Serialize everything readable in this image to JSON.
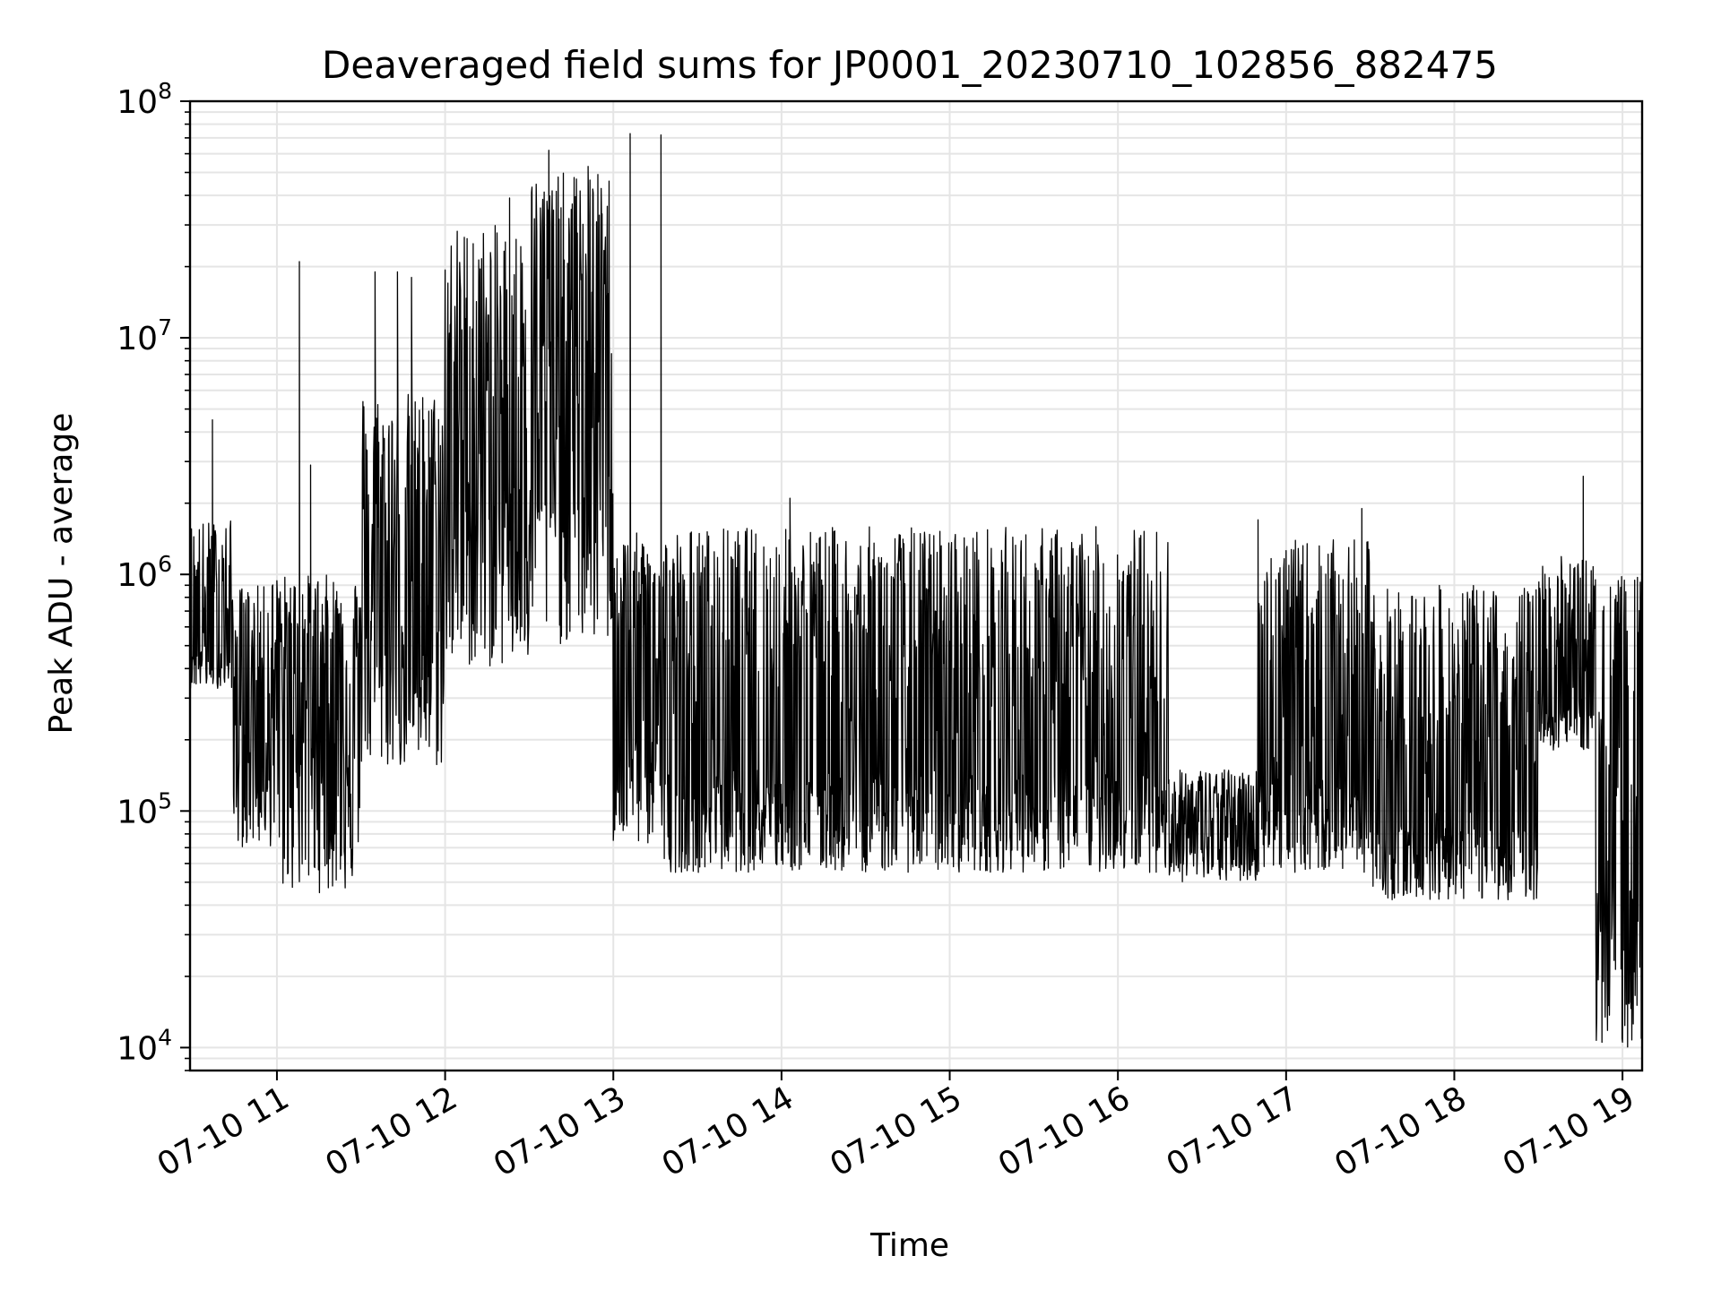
{
  "chart_data": {
    "type": "line",
    "title": "Deaveraged field sums for JP0001_20230710_102856_882475",
    "xlabel": "Time",
    "ylabel": "Peak ADU - average",
    "yscale": "log",
    "ylim": [
      8000,
      100000000
    ],
    "xlim": [
      "2023-07-10 10:29",
      "2023-07-10 19:07"
    ],
    "grid": true,
    "line_color": "#000000",
    "grid_color": "#e5e5e5",
    "x_ticks": [
      {
        "value": "2023-07-10 11:00",
        "label": "07-10 11"
      },
      {
        "value": "2023-07-10 12:00",
        "label": "07-10 12"
      },
      {
        "value": "2023-07-10 13:00",
        "label": "07-10 13"
      },
      {
        "value": "2023-07-10 14:00",
        "label": "07-10 14"
      },
      {
        "value": "2023-07-10 15:00",
        "label": "07-10 15"
      },
      {
        "value": "2023-07-10 16:00",
        "label": "07-10 16"
      },
      {
        "value": "2023-07-10 17:00",
        "label": "07-10 17"
      },
      {
        "value": "2023-07-10 18:00",
        "label": "07-10 18"
      },
      {
        "value": "2023-07-10 19:00",
        "label": "07-10 19"
      }
    ],
    "y_ticks": [
      {
        "value": 10000,
        "base": "10",
        "exp": "4"
      },
      {
        "value": 100000,
        "base": "10",
        "exp": "5"
      },
      {
        "value": 1000000,
        "base": "10",
        "exp": "6"
      },
      {
        "value": 10000000,
        "base": "10",
        "exp": "7"
      },
      {
        "value": 100000000,
        "base": "10",
        "exp": "8"
      }
    ],
    "series": [
      {
        "style": "dense-spiky",
        "segments": [
          {
            "start": "2023-07-10 10:29",
            "end": "2023-07-10 10:44",
            "base": 500000,
            "low": 330000,
            "high": 1700000
          },
          {
            "start": "2023-07-10 10:44",
            "end": "2023-07-10 10:58",
            "base": 250000,
            "low": 70000,
            "high": 900000
          },
          {
            "start": "2023-07-10 10:58",
            "end": "2023-07-10 11:30",
            "base": 300000,
            "low": 45000,
            "high": 1000000
          },
          {
            "start": "2023-07-10 11:30",
            "end": "2023-07-10 12:00",
            "base": 700000,
            "low": 150000,
            "high": 6000000
          },
          {
            "start": "2023-07-10 12:00",
            "end": "2023-07-10 12:30",
            "base": 2500000,
            "low": 400000,
            "high": 30000000
          },
          {
            "start": "2023-07-10 12:30",
            "end": "2023-07-10 13:00",
            "base": 5000000,
            "low": 500000,
            "high": 50000000
          },
          {
            "start": "2023-07-10 13:00",
            "end": "2023-07-10 13:17",
            "base": 300000,
            "low": 70000,
            "high": 1500000
          },
          {
            "start": "2023-07-10 13:17",
            "end": "2023-07-10 16:18",
            "base": 150000,
            "low": 55000,
            "high": 1600000
          },
          {
            "start": "2023-07-10 16:18",
            "end": "2023-07-10 16:50",
            "base": 80000,
            "low": 50000,
            "high": 150000
          },
          {
            "start": "2023-07-10 16:50",
            "end": "2023-07-10 17:30",
            "base": 150000,
            "low": 55000,
            "high": 1400000
          },
          {
            "start": "2023-07-10 17:30",
            "end": "2023-07-10 18:30",
            "base": 90000,
            "low": 42000,
            "high": 900000
          },
          {
            "start": "2023-07-10 18:30",
            "end": "2023-07-10 18:50",
            "base": 300000,
            "low": 180000,
            "high": 1200000
          },
          {
            "start": "2023-07-10 18:50",
            "end": "2023-07-10 19:07",
            "base": 50000,
            "low": 10000,
            "high": 1000000
          }
        ],
        "peaks": [
          {
            "x": "2023-07-10 10:37",
            "y": 4500000
          },
          {
            "x": "2023-07-10 11:08",
            "y": 21000000
          },
          {
            "x": "2023-07-10 11:12",
            "y": 2900000
          },
          {
            "x": "2023-07-10 11:35",
            "y": 19000000
          },
          {
            "x": "2023-07-10 11:43",
            "y": 19000000
          },
          {
            "x": "2023-07-10 11:48",
            "y": 18000000
          },
          {
            "x": "2023-07-10 12:10",
            "y": 25000000
          },
          {
            "x": "2023-07-10 12:23",
            "y": 39000000
          },
          {
            "x": "2023-07-10 12:37",
            "y": 62000000
          },
          {
            "x": "2023-07-10 12:51",
            "y": 53000000
          },
          {
            "x": "2023-07-10 13:06",
            "y": 73000000
          },
          {
            "x": "2023-07-10 13:17",
            "y": 72000000
          },
          {
            "x": "2023-07-10 14:03",
            "y": 2100000
          },
          {
            "x": "2023-07-10 16:50",
            "y": 1700000
          },
          {
            "x": "2023-07-10 17:27",
            "y": 1900000
          },
          {
            "x": "2023-07-10 18:46",
            "y": 2600000
          },
          {
            "x": "2023-07-10 19:07",
            "y": 10000
          }
        ]
      }
    ]
  }
}
